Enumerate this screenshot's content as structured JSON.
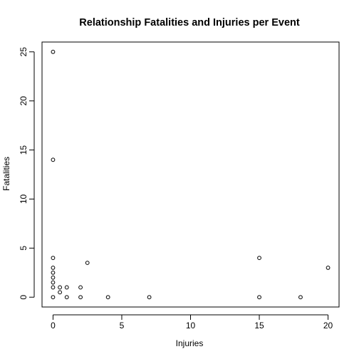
{
  "chart_data": {
    "type": "scatter",
    "title": "Relationship Fatalities and Injuries per Event",
    "xlabel": "Injuries",
    "ylabel": "Fatalities",
    "xlim": [
      -0.8,
      20.8
    ],
    "ylim": [
      -1.0,
      26.0
    ],
    "x_ticks": [
      0,
      5,
      10,
      15,
      20
    ],
    "y_ticks": [
      0,
      5,
      10,
      15,
      20,
      25
    ],
    "x_tick_labels": [
      "0",
      "5",
      "10",
      "15",
      "20"
    ],
    "y_tick_labels": [
      "0",
      "5",
      "10",
      "15",
      "20",
      "25"
    ],
    "grid": false,
    "legend": "none",
    "marker": "open-circle",
    "colors": {
      "points": "#000000",
      "axes": "#000000",
      "background": "#ffffff"
    },
    "points": [
      {
        "x": 0,
        "y": 25
      },
      {
        "x": 0,
        "y": 14
      },
      {
        "x": 0,
        "y": 4
      },
      {
        "x": 0,
        "y": 3
      },
      {
        "x": 0,
        "y": 2.5
      },
      {
        "x": 0,
        "y": 2
      },
      {
        "x": 0,
        "y": 1.5
      },
      {
        "x": 0,
        "y": 1
      },
      {
        "x": 0,
        "y": 0
      },
      {
        "x": 0.5,
        "y": 1
      },
      {
        "x": 0.5,
        "y": 0.5
      },
      {
        "x": 1,
        "y": 1
      },
      {
        "x": 1,
        "y": 0
      },
      {
        "x": 2,
        "y": 1
      },
      {
        "x": 2,
        "y": 0
      },
      {
        "x": 2.5,
        "y": 3.5
      },
      {
        "x": 4,
        "y": 0
      },
      {
        "x": 7,
        "y": 0
      },
      {
        "x": 15,
        "y": 4
      },
      {
        "x": 15,
        "y": 0
      },
      {
        "x": 18,
        "y": 0
      },
      {
        "x": 20,
        "y": 3
      }
    ]
  }
}
